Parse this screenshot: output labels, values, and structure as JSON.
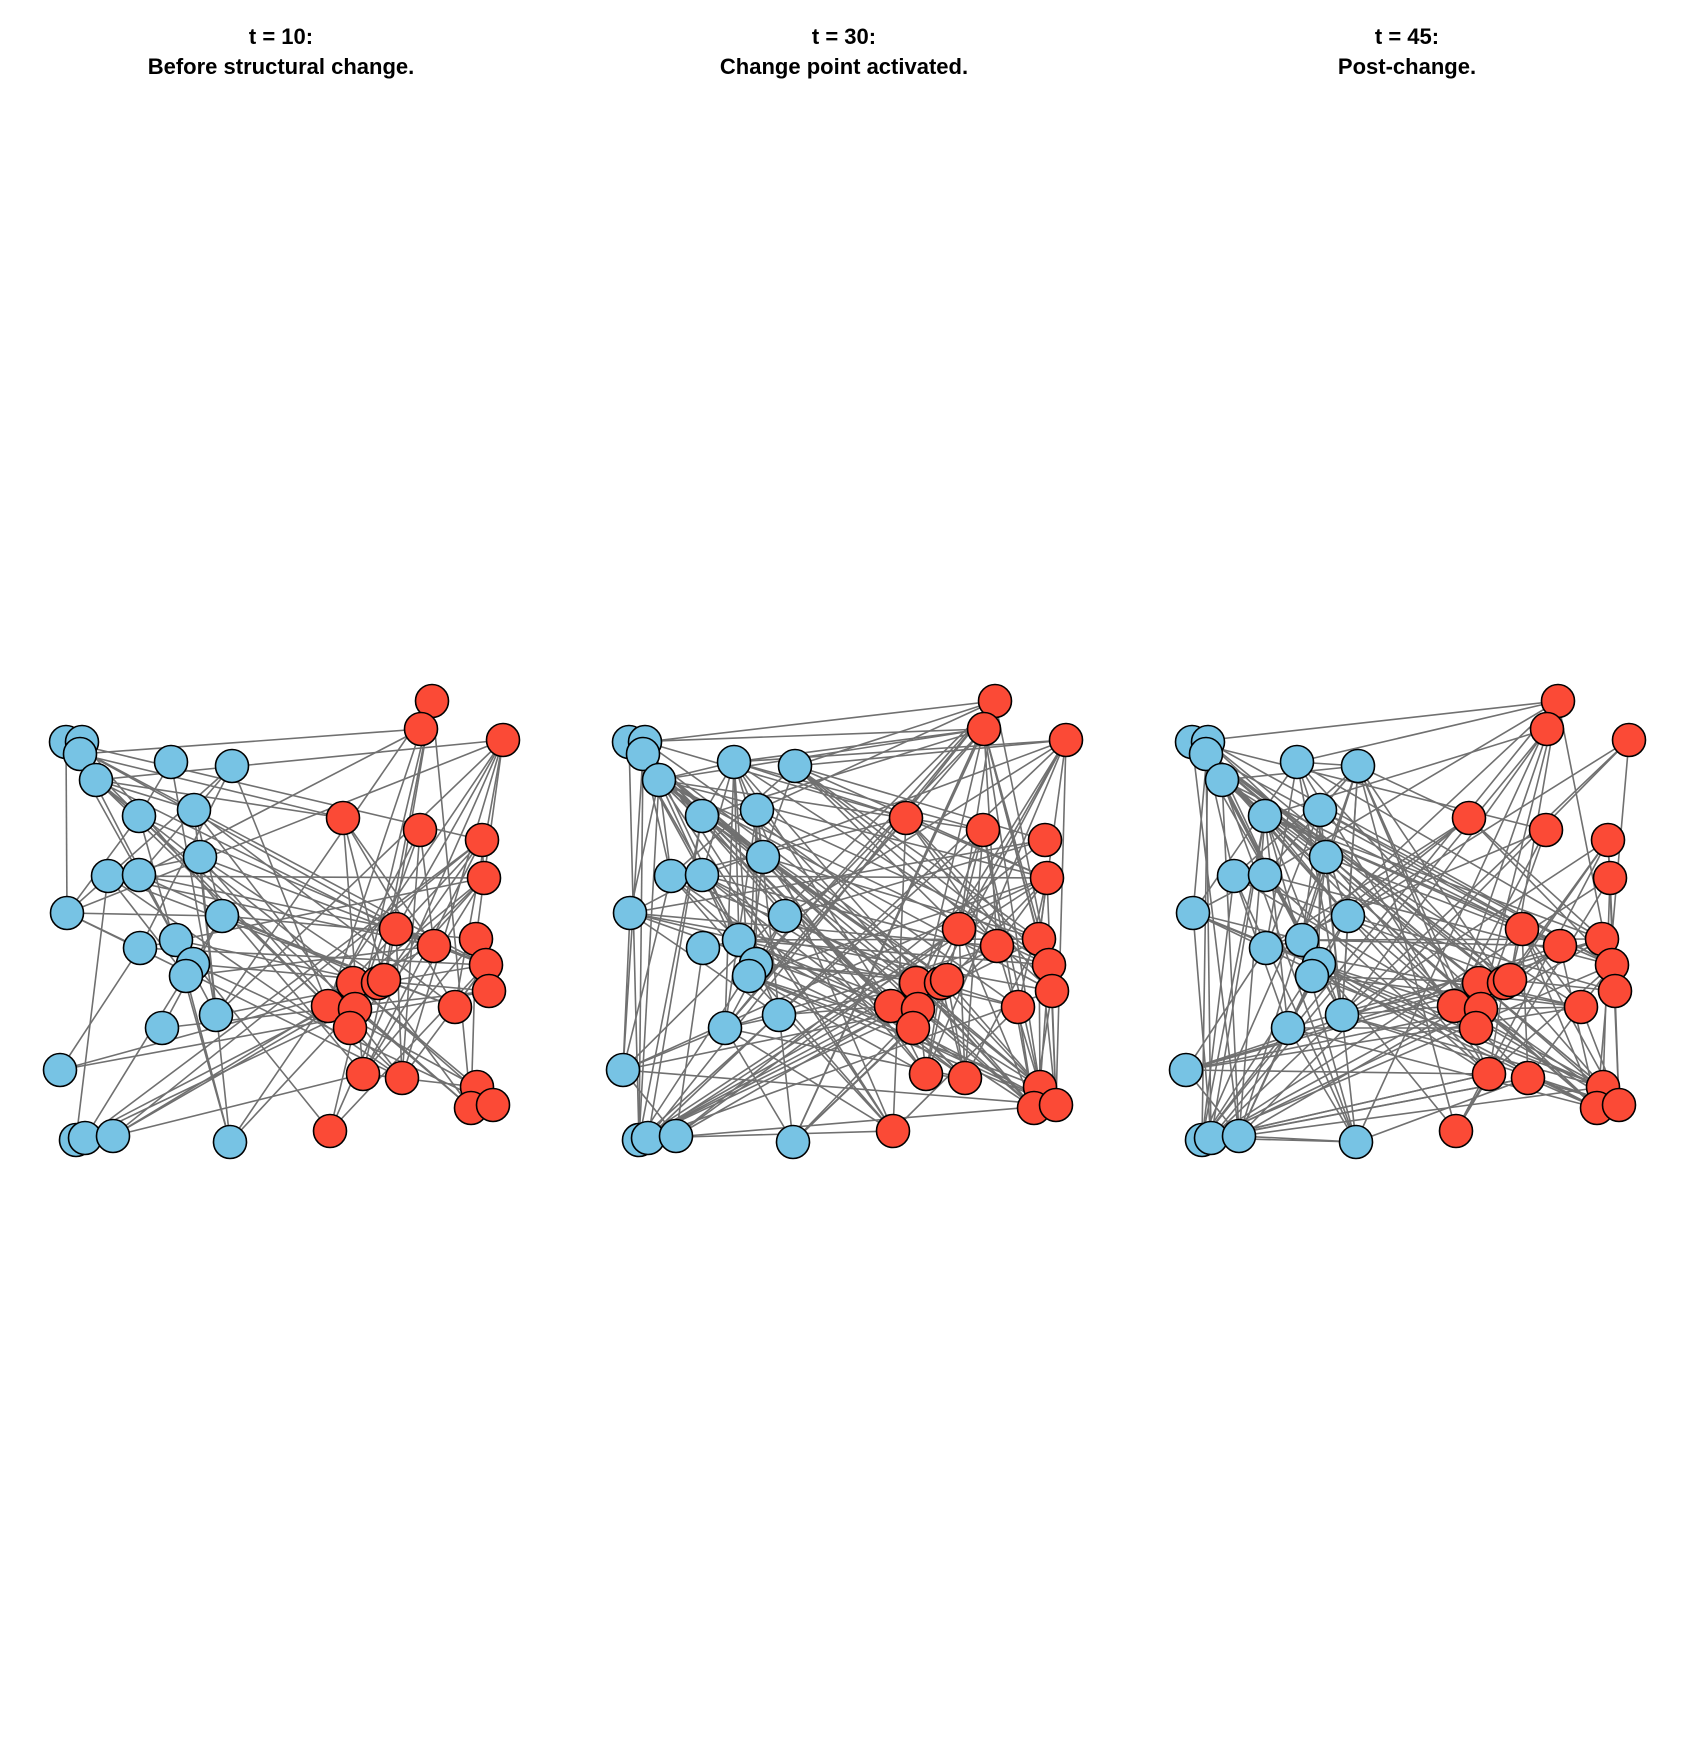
{
  "colors": {
    "blue": "#77c3e4",
    "red": "#fb4a36",
    "edge": "#707070",
    "outline": "#000000",
    "background": "#ffffff"
  },
  "panels": [
    {
      "id": "p1",
      "title_line1": "t = 10:",
      "title_line2": "Before structural change."
    },
    {
      "id": "p2",
      "title_line1": "t = 30:",
      "title_line2": "Change point activated."
    },
    {
      "id": "p3",
      "title_line1": "t = 45:",
      "title_line2": "Post-change."
    }
  ]
}
